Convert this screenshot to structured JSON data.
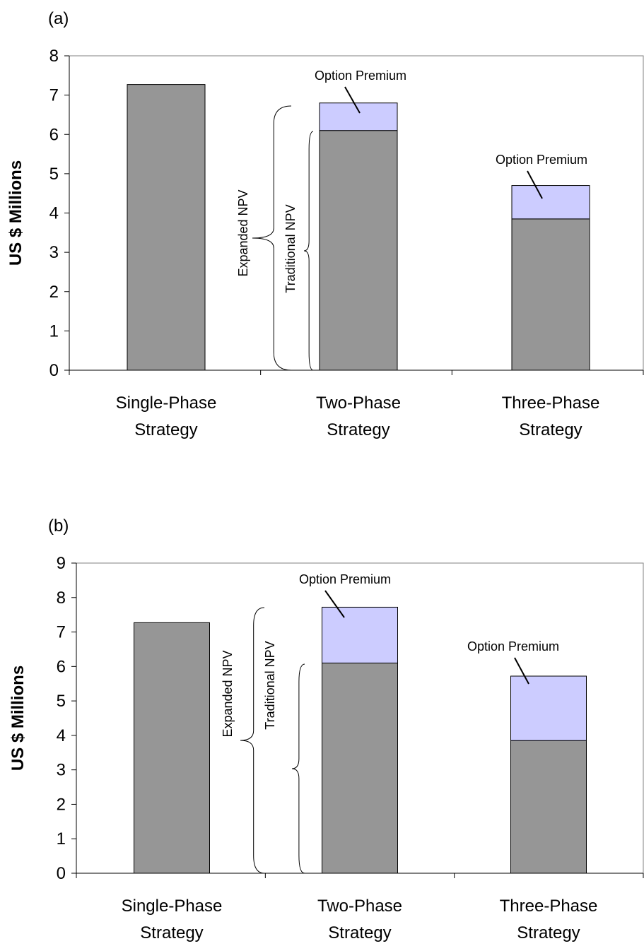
{
  "colors": {
    "base": "#969696",
    "premium": "#ccccff",
    "stroke": "#000000"
  },
  "chart_data": [
    {
      "type": "bar",
      "stacked": true,
      "panel_label": "(a)",
      "ylabel": "US $ Millions",
      "ylim": [
        0,
        8
      ],
      "yticks": [
        "0",
        "1",
        "2",
        "3",
        "4",
        "5",
        "6",
        "7",
        "8"
      ],
      "categories": [
        [
          "Single-Phase",
          "Strategy"
        ],
        [
          "Two-Phase",
          "Strategy"
        ],
        [
          "Three-Phase",
          "Strategy"
        ]
      ],
      "series": [
        {
          "name": "Traditional NPV",
          "values": [
            7.27,
            6.1,
            3.85
          ]
        },
        {
          "name": "Option Premium",
          "values": [
            0,
            0.7,
            0.85
          ]
        }
      ],
      "annotations": {
        "premium_label": "Option Premium",
        "expanded_label": "Expanded NPV",
        "traditional_label": "Traditional NPV"
      }
    },
    {
      "type": "bar",
      "stacked": true,
      "panel_label": "(b)",
      "ylabel": "US $ Millions",
      "ylim": [
        0,
        9
      ],
      "yticks": [
        "0",
        "1",
        "2",
        "3",
        "4",
        "5",
        "6",
        "7",
        "8",
        "9"
      ],
      "categories": [
        [
          "Single-Phase",
          "Strategy"
        ],
        [
          "Two-Phase",
          "Strategy"
        ],
        [
          "Three-Phase",
          "Strategy"
        ]
      ],
      "series": [
        {
          "name": "Traditional NPV",
          "values": [
            7.27,
            6.1,
            3.85
          ]
        },
        {
          "name": "Option Premium",
          "values": [
            0,
            1.62,
            1.87
          ]
        }
      ],
      "annotations": {
        "premium_label": "Option Premium",
        "expanded_label": "Expanded NPV",
        "traditional_label": "Traditional NPV"
      }
    }
  ]
}
